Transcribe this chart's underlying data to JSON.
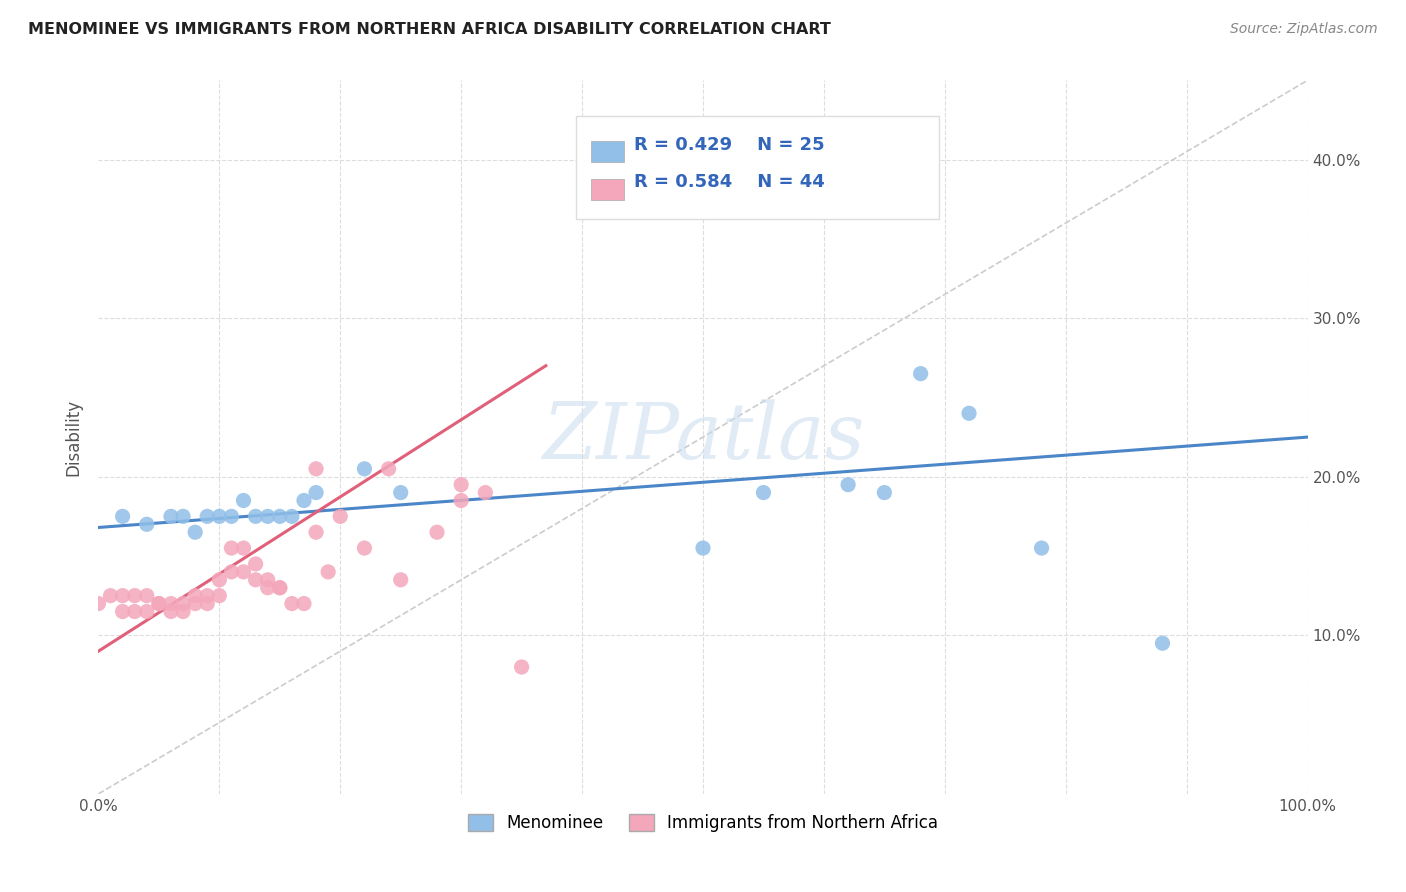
{
  "title": "MENOMINEE VS IMMIGRANTS FROM NORTHERN AFRICA DISABILITY CORRELATION CHART",
  "source": "Source: ZipAtlas.com",
  "ylabel": "Disability",
  "xlim": [
    0,
    1.0
  ],
  "ylim": [
    0,
    0.45
  ],
  "xticks": [
    0.0,
    0.1,
    0.2,
    0.3,
    0.4,
    0.5,
    0.6,
    0.7,
    0.8,
    0.9,
    1.0
  ],
  "xticklabels": [
    "0.0%",
    "",
    "",
    "",
    "",
    "",
    "",
    "",
    "",
    "",
    "100.0%"
  ],
  "yticks": [
    0.0,
    0.1,
    0.2,
    0.3,
    0.4
  ],
  "yticklabels": [
    "",
    "10.0%",
    "20.0%",
    "30.0%",
    "40.0%"
  ],
  "legend_labels": [
    "Menominee",
    "Immigrants from Northern Africa"
  ],
  "legend_R": [
    "R = 0.429",
    "R = 0.584"
  ],
  "legend_N": [
    "N = 25",
    "N = 44"
  ],
  "blue_color": "#91BFE8",
  "pink_color": "#F4A7BB",
  "blue_line_color": "#4A86C8",
  "pink_line_color": "#E0607A",
  "diagonal_color": "#CCCCCC",
  "watermark_text": "ZIPatlas",
  "blue_scatter_x": [
    0.02,
    0.04,
    0.06,
    0.07,
    0.08,
    0.09,
    0.1,
    0.11,
    0.12,
    0.13,
    0.14,
    0.15,
    0.16,
    0.17,
    0.18,
    0.22,
    0.25,
    0.5,
    0.55,
    0.62,
    0.65,
    0.68,
    0.72,
    0.78,
    0.88
  ],
  "blue_scatter_y": [
    0.175,
    0.17,
    0.175,
    0.175,
    0.165,
    0.175,
    0.175,
    0.175,
    0.185,
    0.175,
    0.175,
    0.175,
    0.175,
    0.185,
    0.19,
    0.205,
    0.19,
    0.155,
    0.19,
    0.195,
    0.19,
    0.265,
    0.24,
    0.155,
    0.095
  ],
  "pink_scatter_x": [
    0.0,
    0.01,
    0.02,
    0.02,
    0.03,
    0.03,
    0.04,
    0.04,
    0.05,
    0.05,
    0.06,
    0.06,
    0.07,
    0.07,
    0.08,
    0.08,
    0.09,
    0.09,
    0.1,
    0.1,
    0.11,
    0.11,
    0.12,
    0.12,
    0.13,
    0.13,
    0.14,
    0.14,
    0.15,
    0.15,
    0.16,
    0.17,
    0.18,
    0.19,
    0.2,
    0.22,
    0.25,
    0.28,
    0.3,
    0.32,
    0.18,
    0.24,
    0.3,
    0.35
  ],
  "pink_scatter_y": [
    0.12,
    0.125,
    0.125,
    0.115,
    0.125,
    0.115,
    0.125,
    0.115,
    0.12,
    0.12,
    0.12,
    0.115,
    0.12,
    0.115,
    0.125,
    0.12,
    0.125,
    0.12,
    0.135,
    0.125,
    0.155,
    0.14,
    0.155,
    0.14,
    0.145,
    0.135,
    0.13,
    0.135,
    0.13,
    0.13,
    0.12,
    0.12,
    0.165,
    0.14,
    0.175,
    0.155,
    0.135,
    0.165,
    0.185,
    0.19,
    0.205,
    0.205,
    0.195,
    0.08
  ],
  "blue_line_x": [
    0.0,
    1.0
  ],
  "blue_line_y": [
    0.168,
    0.225
  ],
  "pink_line_x": [
    0.0,
    0.37
  ],
  "pink_line_y": [
    0.09,
    0.27
  ],
  "background_color": "#FFFFFF",
  "grid_color": "#DDDDDD"
}
